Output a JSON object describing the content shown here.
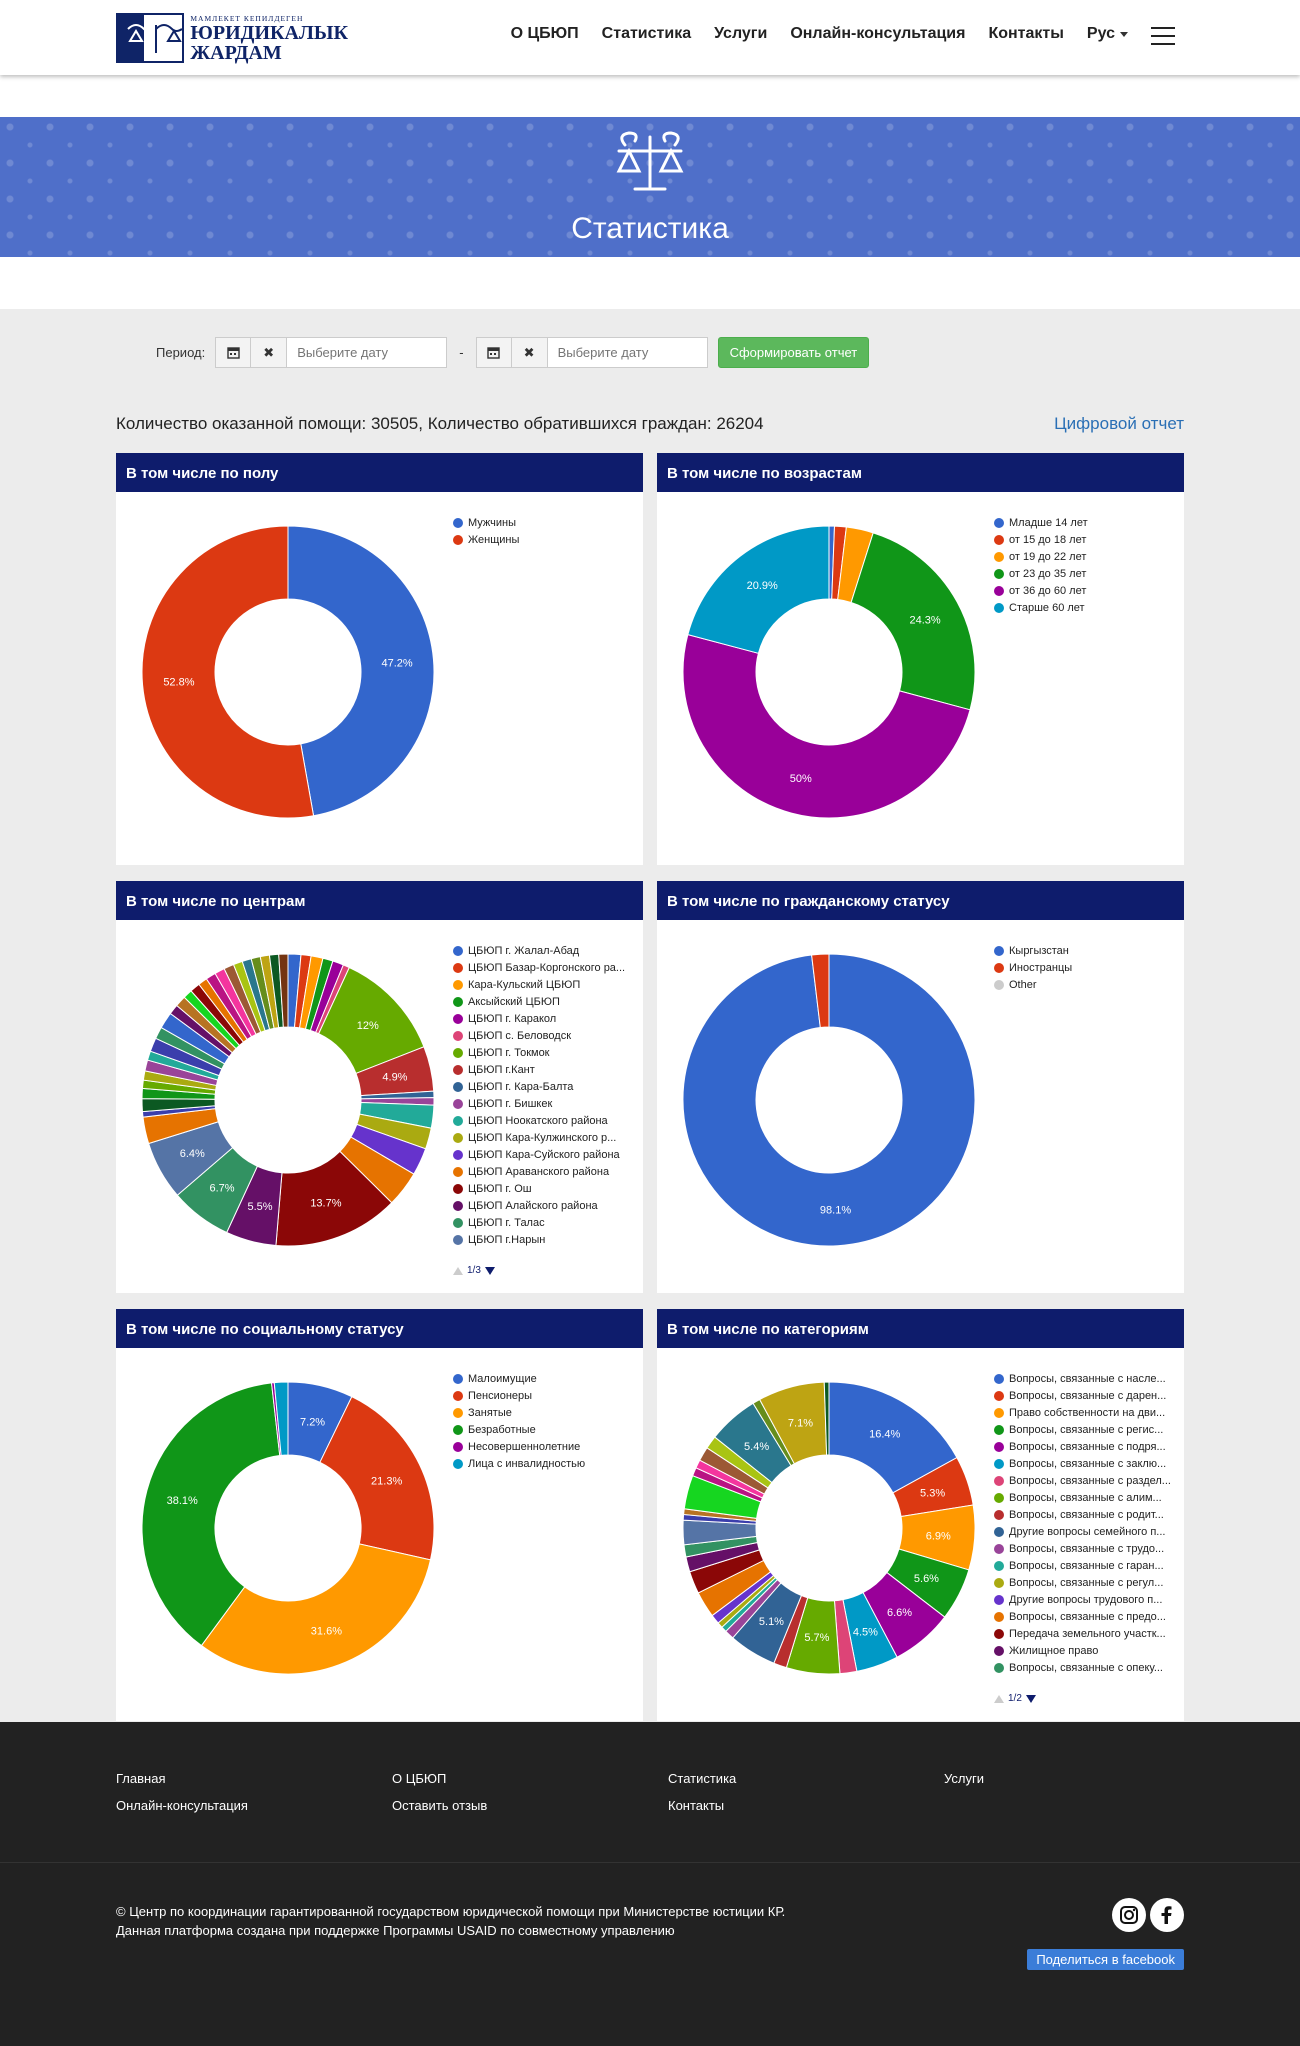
{
  "header": {
    "logo_small": "МАМЛЕКЕТ КЕПИЛДЕГЕН",
    "logo_line1": "ЮРИДИКАЛЫК",
    "logo_line2": "ЖАРДАМ",
    "nav": [
      "О ЦБЮП",
      "Статистика",
      "Услуги",
      "Онлайн-консультация",
      "Контакты"
    ],
    "lang": "Рус"
  },
  "banner": {
    "title": "Статистика"
  },
  "filter": {
    "label": "Период:",
    "placeholder_from": "Выберите дату",
    "placeholder_to": "Выберите дату",
    "separator": "-",
    "submit": "Сформировать отчет"
  },
  "summary": {
    "text": "Количество оказанной помощи: 30505, Количество обратившихся граждан: 26204",
    "link": "Цифровой отчет"
  },
  "chart_data": [
    {
      "type": "pie",
      "title": "В том числе по полу",
      "series": [
        {
          "name": "Мужчины",
          "value": 47.2,
          "color": "#3366cc"
        },
        {
          "name": "Женщины",
          "value": 52.8,
          "color": "#dc3912"
        }
      ],
      "show_labels": [
        "47.2%",
        "52.8%"
      ]
    },
    {
      "type": "pie",
      "title": "В том числе по возрастам",
      "series": [
        {
          "name": "Младше 14 лет",
          "value": 0.6,
          "color": "#3366cc"
        },
        {
          "name": "от 15 до 18 лет",
          "value": 1.3,
          "color": "#dc3912"
        },
        {
          "name": "от 19 до 22 лет",
          "value": 3.0,
          "color": "#ff9900"
        },
        {
          "name": "от 23 до 35 лет",
          "value": 24.3,
          "color": "#109618"
        },
        {
          "name": "от 36 до 60 лет",
          "value": 50.0,
          "color": "#990099"
        },
        {
          "name": "Старше 60 лет",
          "value": 20.9,
          "color": "#0099c6"
        }
      ]
    },
    {
      "type": "pie",
      "title": "В том числе по центрам",
      "series": [
        {
          "name": "ЦБЮП г. Жалал-Абад",
          "value": 1.4,
          "color": "#3366cc"
        },
        {
          "name": "ЦБЮП Базар-Коргонского ра...",
          "value": 1.1,
          "color": "#dc3912"
        },
        {
          "name": "Кара-Кульский ЦБЮП",
          "value": 1.3,
          "color": "#ff9900"
        },
        {
          "name": "Аксыйский ЦБЮП",
          "value": 1.1,
          "color": "#109618"
        },
        {
          "name": "ЦБЮП г. Каракол",
          "value": 1.2,
          "color": "#990099"
        },
        {
          "name": "ЦБЮП с. Беловодск",
          "value": 0.7,
          "color": "#dd4477"
        },
        {
          "name": "ЦБЮП г. Токмок",
          "value": 12.0,
          "color": "#66aa00"
        },
        {
          "name": "ЦБЮП г.Кант",
          "value": 4.9,
          "color": "#b82e2e"
        },
        {
          "name": "ЦБЮП г. Кара-Балта",
          "value": 0.7,
          "color": "#316395"
        },
        {
          "name": "ЦБЮП г. Бишкек",
          "value": 0.8,
          "color": "#994499"
        },
        {
          "name": "ЦБЮП Ноокатского района",
          "value": 2.5,
          "color": "#22aa99"
        },
        {
          "name": "ЦБЮП Кара-Кулжинского р...",
          "value": 2.3,
          "color": "#aaaa11"
        },
        {
          "name": "ЦБЮП Кара-Суйского района",
          "value": 3.0,
          "color": "#6633cc"
        },
        {
          "name": "ЦБЮП Араванского района",
          "value": 3.9,
          "color": "#e67300"
        },
        {
          "name": "ЦБЮП г. Ош",
          "value": 13.7,
          "color": "#8b0707"
        },
        {
          "name": "ЦБЮП Алайского района",
          "value": 5.5,
          "color": "#651067"
        },
        {
          "name": "ЦБЮП г. Талас",
          "value": 6.7,
          "color": "#329262"
        },
        {
          "name": "ЦБЮП г.Нарын",
          "value": 6.4,
          "color": "#5574a6"
        },
        {
          "name": "",
          "value": 2.9,
          "color": "#e67300"
        },
        {
          "name": "",
          "value": 0.6,
          "color": "#3b3eac"
        },
        {
          "name": "",
          "value": 1.4,
          "color": "#0c5922"
        },
        {
          "name": "",
          "value": 1.1,
          "color": "#109618"
        },
        {
          "name": "",
          "value": 0.9,
          "color": "#66aa00"
        },
        {
          "name": "",
          "value": 1.0,
          "color": "#aaaa11"
        },
        {
          "name": "",
          "value": 1.2,
          "color": "#994499"
        },
        {
          "name": "",
          "value": 1.0,
          "color": "#22aa99"
        },
        {
          "name": "",
          "value": 1.5,
          "color": "#3b3eac"
        },
        {
          "name": "",
          "value": 1.3,
          "color": "#329262"
        },
        {
          "name": "",
          "value": 1.8,
          "color": "#3366cc"
        },
        {
          "name": "",
          "value": 1.1,
          "color": "#651067"
        },
        {
          "name": "",
          "value": 1.2,
          "color": "#b77322"
        },
        {
          "name": "",
          "value": 1.0,
          "color": "#16d620"
        },
        {
          "name": "",
          "value": 1.1,
          "color": "#8b0707"
        },
        {
          "name": "",
          "value": 1.0,
          "color": "#e67300"
        },
        {
          "name": "",
          "value": 1.1,
          "color": "#b91383"
        },
        {
          "name": "",
          "value": 1.1,
          "color": "#f4359e"
        },
        {
          "name": "",
          "value": 1.1,
          "color": "#9c5935"
        },
        {
          "name": "",
          "value": 1.0,
          "color": "#a9c413"
        },
        {
          "name": "",
          "value": 1.0,
          "color": "#2a778d"
        },
        {
          "name": "",
          "value": 1.0,
          "color": "#668d1c"
        },
        {
          "name": "",
          "value": 1.0,
          "color": "#bea413"
        },
        {
          "name": "",
          "value": 1.0,
          "color": "#0c5922"
        },
        {
          "name": "",
          "value": 1.0,
          "color": "#743411"
        }
      ],
      "pager": "1/3"
    },
    {
      "type": "pie",
      "title": "В том числе по гражданскому статусу",
      "series": [
        {
          "name": "Кыргызстан",
          "value": 98.1,
          "color": "#3366cc"
        },
        {
          "name": "Иностранцы",
          "value": 1.9,
          "color": "#dc3912"
        },
        {
          "name": "Other",
          "value": 0.0,
          "color": "#cccccc"
        }
      ]
    },
    {
      "type": "pie",
      "title": "В том числе по социальному статусу",
      "series": [
        {
          "name": "Малоимущие",
          "value": 7.2,
          "color": "#3366cc"
        },
        {
          "name": "Пенсионеры",
          "value": 21.3,
          "color": "#dc3912"
        },
        {
          "name": "Занятые",
          "value": 31.6,
          "color": "#ff9900"
        },
        {
          "name": "Безработные",
          "value": 38.1,
          "color": "#109618"
        },
        {
          "name": "Несовершеннолетние",
          "value": 0.3,
          "color": "#990099"
        },
        {
          "name": "Лица с инвалидностью",
          "value": 1.5,
          "color": "#0099c6"
        }
      ]
    },
    {
      "type": "pie",
      "title": "В том числе по категориям",
      "series": [
        {
          "name": "Вопросы, связанные с насле...",
          "value": 16.4,
          "color": "#3366cc"
        },
        {
          "name": "Вопросы, связанные с дарен...",
          "value": 5.3,
          "color": "#dc3912"
        },
        {
          "name": "Право собственности на дви...",
          "value": 6.9,
          "color": "#ff9900"
        },
        {
          "name": "Вопросы, связанные с регис...",
          "value": 5.6,
          "color": "#109618"
        },
        {
          "name": "Вопросы, связанные с подря...",
          "value": 6.6,
          "color": "#990099"
        },
        {
          "name": "Вопросы, связанные с заклю...",
          "value": 4.5,
          "color": "#0099c6"
        },
        {
          "name": "Вопросы, связанные с раздел...",
          "value": 1.8,
          "color": "#dd4477"
        },
        {
          "name": "Вопросы, связанные с алим...",
          "value": 5.7,
          "color": "#66aa00"
        },
        {
          "name": "Вопросы, связанные с родит...",
          "value": 1.4,
          "color": "#b82e2e"
        },
        {
          "name": "Другие вопросы семейного п...",
          "value": 5.1,
          "color": "#316395"
        },
        {
          "name": "Вопросы, связанные с трудо...",
          "value": 1.0,
          "color": "#994499"
        },
        {
          "name": "Вопросы, связанные с гаран...",
          "value": 0.6,
          "color": "#22aa99"
        },
        {
          "name": "Вопросы, связанные с регул...",
          "value": 0.6,
          "color": "#aaaa11"
        },
        {
          "name": "Другие вопросы трудового п...",
          "value": 1.0,
          "color": "#6633cc"
        },
        {
          "name": "Вопросы, связанные с предо...",
          "value": 2.8,
          "color": "#e67300"
        },
        {
          "name": "Передача земельного участк...",
          "value": 2.4,
          "color": "#8b0707"
        },
        {
          "name": "Жилищное право",
          "value": 1.6,
          "color": "#651067"
        },
        {
          "name": "Вопросы, связанные с опеку...",
          "value": 1.3,
          "color": "#329262"
        },
        {
          "name": "",
          "value": 2.6,
          "color": "#5574a6"
        },
        {
          "name": "",
          "value": 0.6,
          "color": "#3b3eac"
        },
        {
          "name": "",
          "value": 0.6,
          "color": "#b77322"
        },
        {
          "name": "",
          "value": 3.6,
          "color": "#16d620"
        },
        {
          "name": "",
          "value": 0.9,
          "color": "#b91383"
        },
        {
          "name": "",
          "value": 0.9,
          "color": "#f4359e"
        },
        {
          "name": "",
          "value": 1.5,
          "color": "#9c5935"
        },
        {
          "name": "",
          "value": 1.4,
          "color": "#a9c413"
        },
        {
          "name": "",
          "value": 5.4,
          "color": "#2a778d"
        },
        {
          "name": "",
          "value": 0.8,
          "color": "#668d1c"
        },
        {
          "name": "",
          "value": 7.1,
          "color": "#bea413"
        },
        {
          "name": "",
          "value": 0.5,
          "color": "#0c5922"
        }
      ],
      "pager": "1/2"
    }
  ],
  "footer": {
    "links": [
      "Главная",
      "О ЦБЮП",
      "Статистика",
      "Услуги",
      "Онлайн-консультация",
      "Оставить отзыв",
      "Контакты"
    ],
    "copyright_1": "© Центр по координации гарантированной государством юридической помощи при Министерстве юстиции КР.",
    "copyright_2": "Данная платформа создана при поддержке Программы USAID по совместному управлению",
    "share": "Поделиться в facebook",
    "social_icons": [
      "instagram-icon",
      "facebook-icon"
    ]
  }
}
